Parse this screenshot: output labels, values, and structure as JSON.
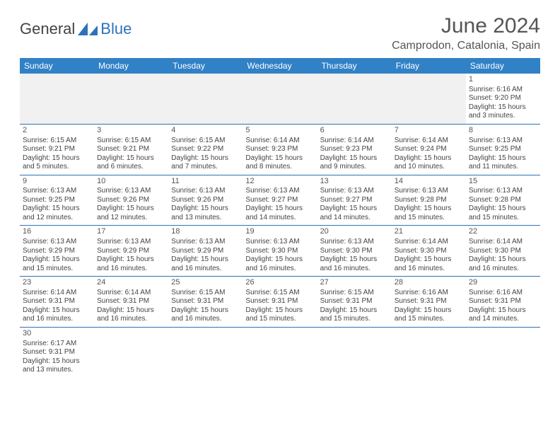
{
  "logo": {
    "general": "General",
    "blue": "Blue",
    "shape_color": "#2d72b8"
  },
  "title": "June 2024",
  "location": "Camprodon, Catalonia, Spain",
  "colors": {
    "header_bg": "#3181c6",
    "header_text": "#ffffff",
    "border": "#2d72b8",
    "blank_bg": "#f1f1f1",
    "text": "#444444",
    "title_text": "#555555"
  },
  "typography": {
    "title_fontsize": 30,
    "location_fontsize": 16,
    "header_fontsize": 12,
    "cell_fontsize": 10,
    "daynum_fontsize": 11
  },
  "day_headers": [
    "Sunday",
    "Monday",
    "Tuesday",
    "Wednesday",
    "Thursday",
    "Friday",
    "Saturday"
  ],
  "weeks": [
    [
      {
        "blank": true
      },
      {
        "blank": true
      },
      {
        "blank": true
      },
      {
        "blank": true
      },
      {
        "blank": true
      },
      {
        "blank": true
      },
      {
        "day": "1",
        "sunrise": "Sunrise: 6:16 AM",
        "sunset": "Sunset: 9:20 PM",
        "daylight": "Daylight: 15 hours and 3 minutes."
      }
    ],
    [
      {
        "day": "2",
        "sunrise": "Sunrise: 6:15 AM",
        "sunset": "Sunset: 9:21 PM",
        "daylight": "Daylight: 15 hours and 5 minutes."
      },
      {
        "day": "3",
        "sunrise": "Sunrise: 6:15 AM",
        "sunset": "Sunset: 9:21 PM",
        "daylight": "Daylight: 15 hours and 6 minutes."
      },
      {
        "day": "4",
        "sunrise": "Sunrise: 6:15 AM",
        "sunset": "Sunset: 9:22 PM",
        "daylight": "Daylight: 15 hours and 7 minutes."
      },
      {
        "day": "5",
        "sunrise": "Sunrise: 6:14 AM",
        "sunset": "Sunset: 9:23 PM",
        "daylight": "Daylight: 15 hours and 8 minutes."
      },
      {
        "day": "6",
        "sunrise": "Sunrise: 6:14 AM",
        "sunset": "Sunset: 9:23 PM",
        "daylight": "Daylight: 15 hours and 9 minutes."
      },
      {
        "day": "7",
        "sunrise": "Sunrise: 6:14 AM",
        "sunset": "Sunset: 9:24 PM",
        "daylight": "Daylight: 15 hours and 10 minutes."
      },
      {
        "day": "8",
        "sunrise": "Sunrise: 6:13 AM",
        "sunset": "Sunset: 9:25 PM",
        "daylight": "Daylight: 15 hours and 11 minutes."
      }
    ],
    [
      {
        "day": "9",
        "sunrise": "Sunrise: 6:13 AM",
        "sunset": "Sunset: 9:25 PM",
        "daylight": "Daylight: 15 hours and 12 minutes."
      },
      {
        "day": "10",
        "sunrise": "Sunrise: 6:13 AM",
        "sunset": "Sunset: 9:26 PM",
        "daylight": "Daylight: 15 hours and 12 minutes."
      },
      {
        "day": "11",
        "sunrise": "Sunrise: 6:13 AM",
        "sunset": "Sunset: 9:26 PM",
        "daylight": "Daylight: 15 hours and 13 minutes."
      },
      {
        "day": "12",
        "sunrise": "Sunrise: 6:13 AM",
        "sunset": "Sunset: 9:27 PM",
        "daylight": "Daylight: 15 hours and 14 minutes."
      },
      {
        "day": "13",
        "sunrise": "Sunrise: 6:13 AM",
        "sunset": "Sunset: 9:27 PM",
        "daylight": "Daylight: 15 hours and 14 minutes."
      },
      {
        "day": "14",
        "sunrise": "Sunrise: 6:13 AM",
        "sunset": "Sunset: 9:28 PM",
        "daylight": "Daylight: 15 hours and 15 minutes."
      },
      {
        "day": "15",
        "sunrise": "Sunrise: 6:13 AM",
        "sunset": "Sunset: 9:28 PM",
        "daylight": "Daylight: 15 hours and 15 minutes."
      }
    ],
    [
      {
        "day": "16",
        "sunrise": "Sunrise: 6:13 AM",
        "sunset": "Sunset: 9:29 PM",
        "daylight": "Daylight: 15 hours and 15 minutes."
      },
      {
        "day": "17",
        "sunrise": "Sunrise: 6:13 AM",
        "sunset": "Sunset: 9:29 PM",
        "daylight": "Daylight: 15 hours and 16 minutes."
      },
      {
        "day": "18",
        "sunrise": "Sunrise: 6:13 AM",
        "sunset": "Sunset: 9:29 PM",
        "daylight": "Daylight: 15 hours and 16 minutes."
      },
      {
        "day": "19",
        "sunrise": "Sunrise: 6:13 AM",
        "sunset": "Sunset: 9:30 PM",
        "daylight": "Daylight: 15 hours and 16 minutes."
      },
      {
        "day": "20",
        "sunrise": "Sunrise: 6:13 AM",
        "sunset": "Sunset: 9:30 PM",
        "daylight": "Daylight: 15 hours and 16 minutes."
      },
      {
        "day": "21",
        "sunrise": "Sunrise: 6:14 AM",
        "sunset": "Sunset: 9:30 PM",
        "daylight": "Daylight: 15 hours and 16 minutes."
      },
      {
        "day": "22",
        "sunrise": "Sunrise: 6:14 AM",
        "sunset": "Sunset: 9:30 PM",
        "daylight": "Daylight: 15 hours and 16 minutes."
      }
    ],
    [
      {
        "day": "23",
        "sunrise": "Sunrise: 6:14 AM",
        "sunset": "Sunset: 9:31 PM",
        "daylight": "Daylight: 15 hours and 16 minutes."
      },
      {
        "day": "24",
        "sunrise": "Sunrise: 6:14 AM",
        "sunset": "Sunset: 9:31 PM",
        "daylight": "Daylight: 15 hours and 16 minutes."
      },
      {
        "day": "25",
        "sunrise": "Sunrise: 6:15 AM",
        "sunset": "Sunset: 9:31 PM",
        "daylight": "Daylight: 15 hours and 16 minutes."
      },
      {
        "day": "26",
        "sunrise": "Sunrise: 6:15 AM",
        "sunset": "Sunset: 9:31 PM",
        "daylight": "Daylight: 15 hours and 15 minutes."
      },
      {
        "day": "27",
        "sunrise": "Sunrise: 6:15 AM",
        "sunset": "Sunset: 9:31 PM",
        "daylight": "Daylight: 15 hours and 15 minutes."
      },
      {
        "day": "28",
        "sunrise": "Sunrise: 6:16 AM",
        "sunset": "Sunset: 9:31 PM",
        "daylight": "Daylight: 15 hours and 15 minutes."
      },
      {
        "day": "29",
        "sunrise": "Sunrise: 6:16 AM",
        "sunset": "Sunset: 9:31 PM",
        "daylight": "Daylight: 15 hours and 14 minutes."
      }
    ],
    [
      {
        "day": "30",
        "sunrise": "Sunrise: 6:17 AM",
        "sunset": "Sunset: 9:31 PM",
        "daylight": "Daylight: 15 hours and 13 minutes."
      },
      {
        "blank": true
      },
      {
        "blank": true
      },
      {
        "blank": true
      },
      {
        "blank": true
      },
      {
        "blank": true
      },
      {
        "blank": true
      }
    ]
  ]
}
